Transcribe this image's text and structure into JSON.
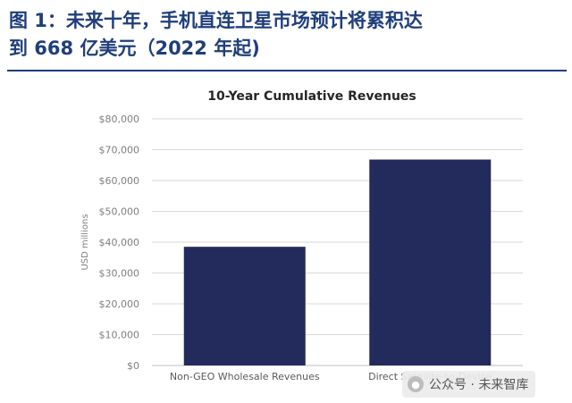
{
  "header": {
    "line1": "图 1：未来十年，手机直连卫星市场预计将累积达",
    "line2": "到 668 亿美元（2022 年起)"
  },
  "watermark": {
    "text": "公众号 · 未来智库",
    "icon": "wechat-icon"
  },
  "colors": {
    "headline": "#1f3e7a",
    "bar": "#232a5c",
    "grid": "#d9d9d9",
    "tick": "#7f7f7f"
  },
  "chart_data": {
    "type": "bar",
    "title": "10-Year Cumulative Revenues",
    "xlabel": "",
    "ylabel": "USD millions",
    "categories": [
      "Non-GEO Wholesale Revenues",
      "Direct Satellite-to-Device"
    ],
    "values": [
      38500,
      66800
    ],
    "ylim": [
      0,
      80000
    ],
    "yticks": [
      0,
      10000,
      20000,
      30000,
      40000,
      50000,
      60000,
      70000,
      80000
    ],
    "ytick_labels": [
      "$0",
      "$10,000",
      "$20,000",
      "$30,000",
      "$40,000",
      "$50,000",
      "$60,000",
      "$70,000",
      "$80,000"
    ],
    "grid": true,
    "legend": "none"
  }
}
